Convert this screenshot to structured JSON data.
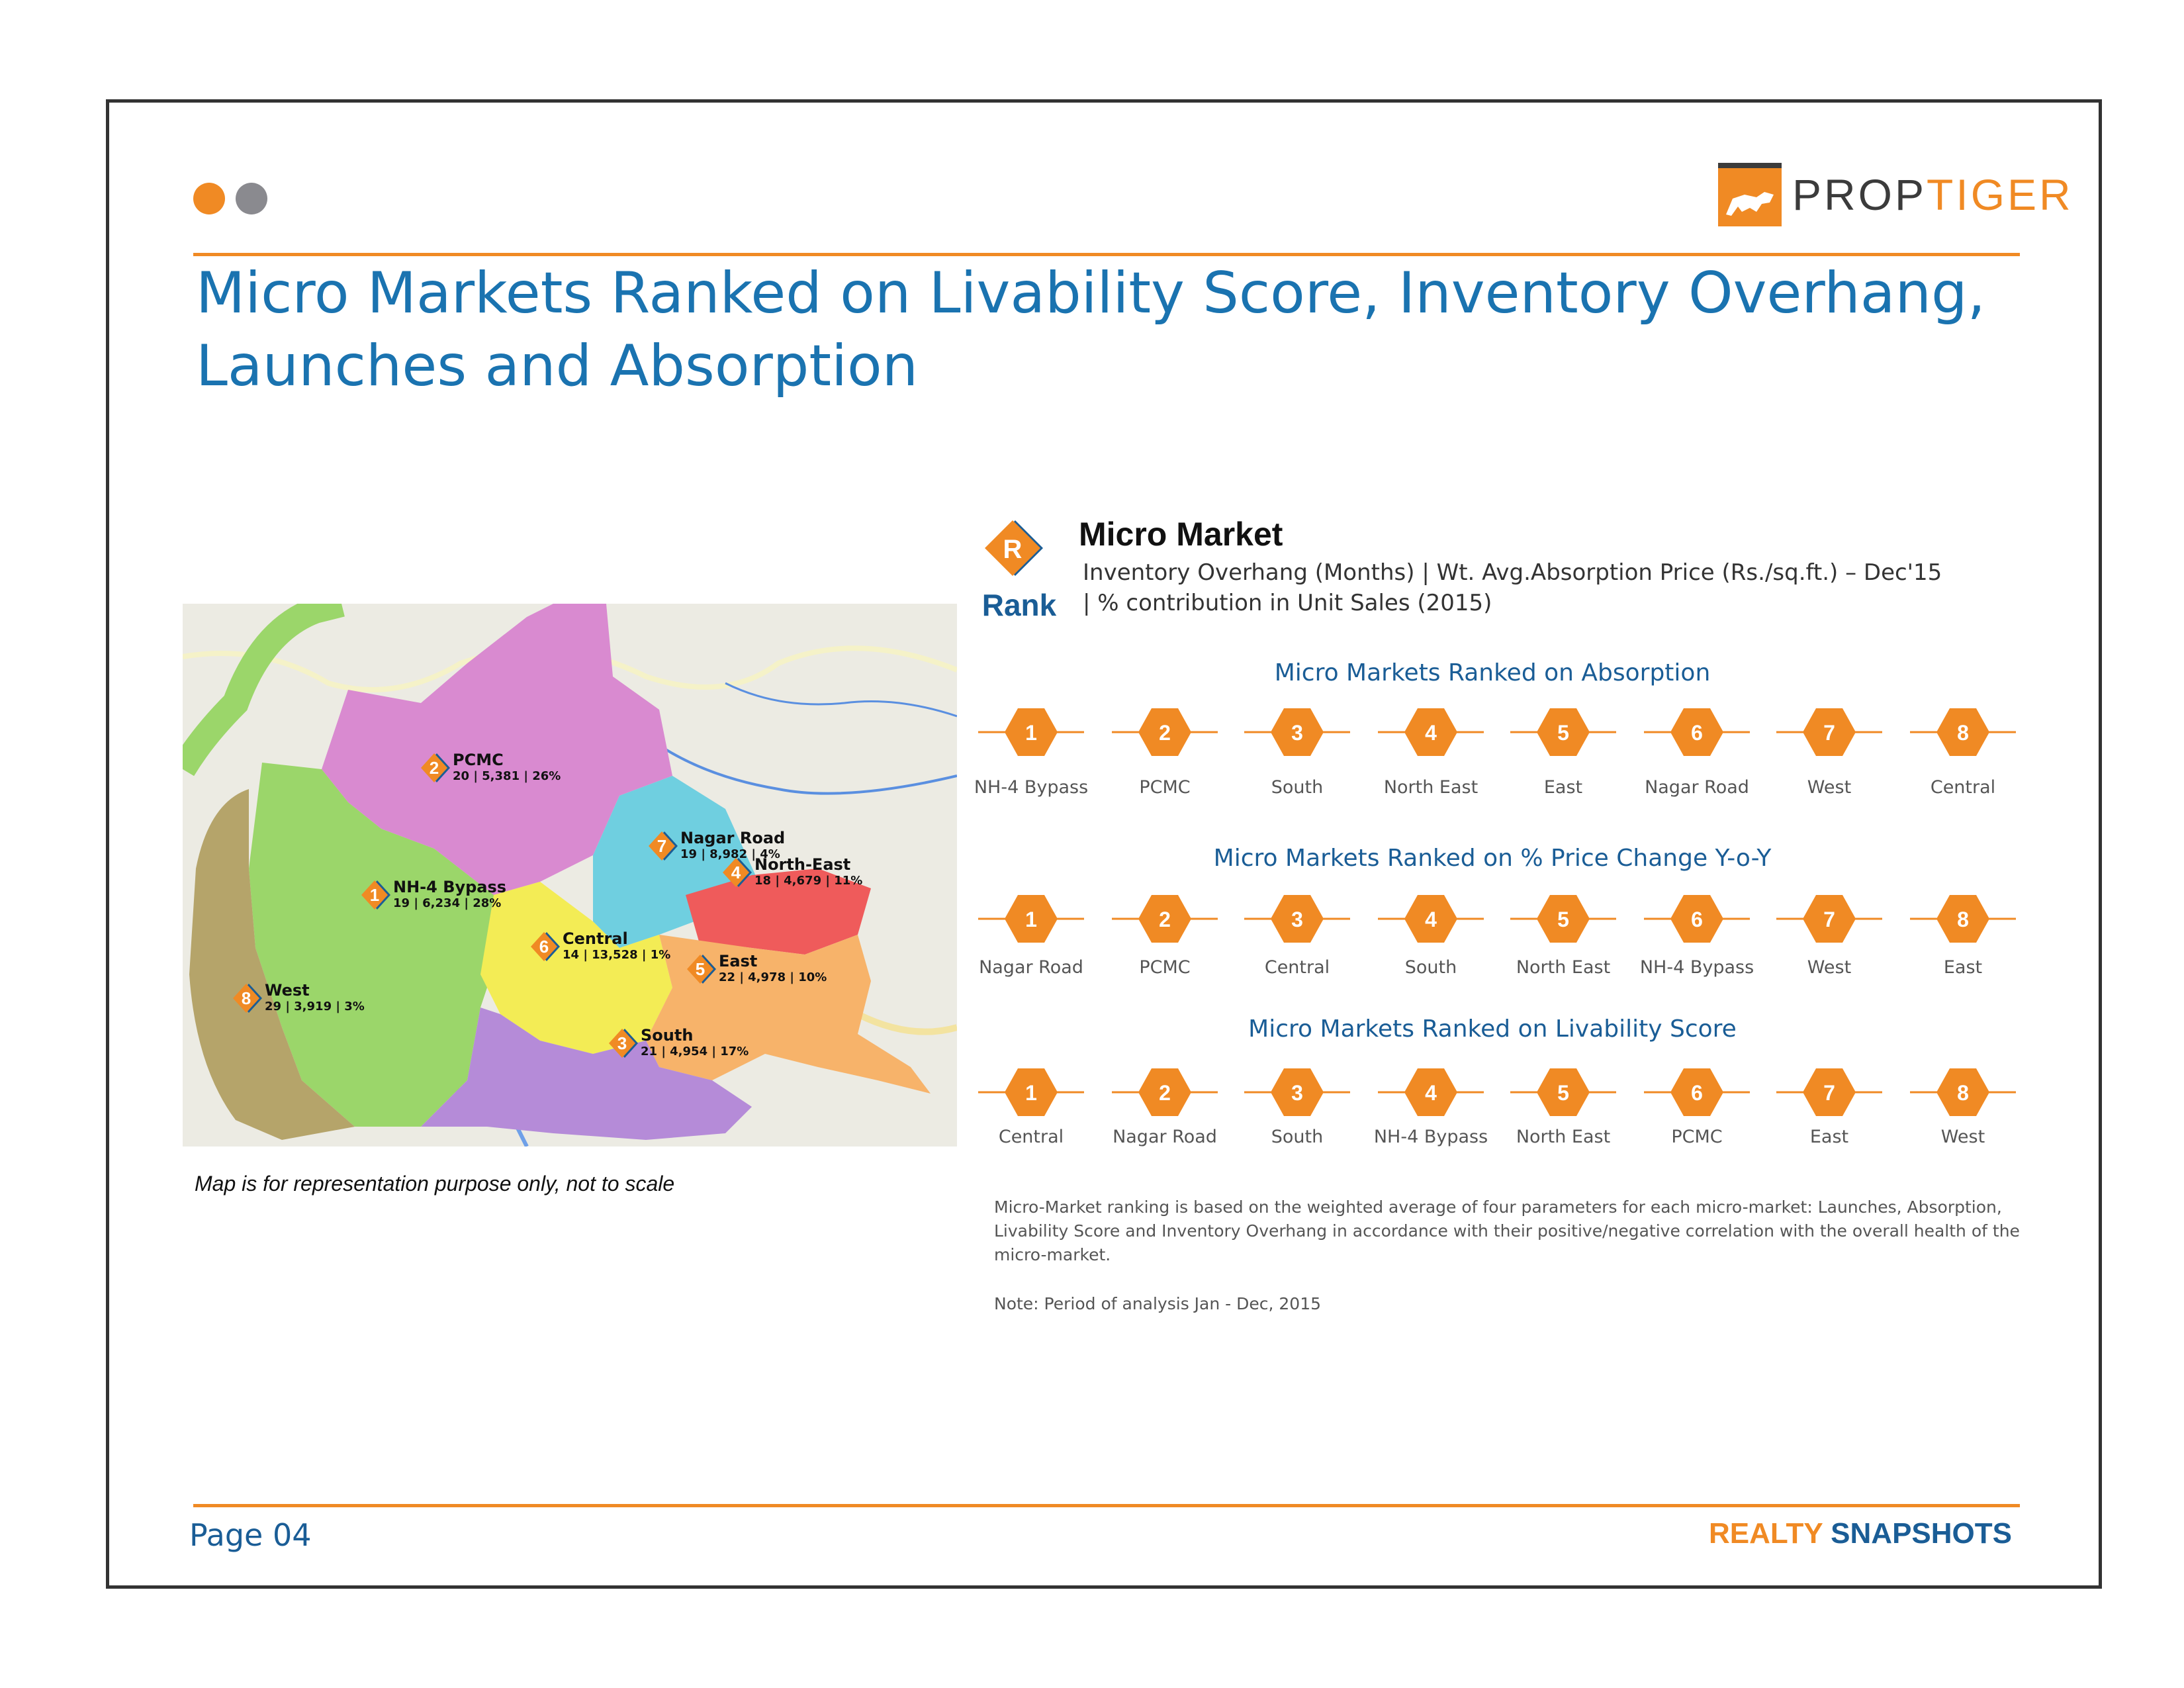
{
  "header": {
    "logo": {
      "prefix": "PROP",
      "suffix": "TIGER",
      "icon": "tiger-logo-icon"
    },
    "title_line1": "Micro Markets Ranked on Livability Score, Inventory Overhang,",
    "title_line2": "Launches and Absorption"
  },
  "map": {
    "caption": "Map is for representation purpose only, not to scale",
    "markets": [
      {
        "rank": "2",
        "name": "PCMC",
        "stats": "20 | 5,381 | 26%",
        "color": "#d98ad0"
      },
      {
        "rank": "7",
        "name": "Nagar Road",
        "stats": "19 | 8,982 | 4%",
        "color": "#6fcfe0"
      },
      {
        "rank": "4",
        "name": "North-East",
        "stats": "18 | 4,679 | 11%",
        "color": "#ef5b5b"
      },
      {
        "rank": "1",
        "name": "NH-4 Bypass",
        "stats": "19 | 6,234 | 28%",
        "color": "#9bd66a"
      },
      {
        "rank": "6",
        "name": "Central",
        "stats": "14 | 13,528 | 1%",
        "color": "#f3ec55"
      },
      {
        "rank": "5",
        "name": "East",
        "stats": "22 | 4,978 | 10%",
        "color": "#f7b36a"
      },
      {
        "rank": "8",
        "name": "West",
        "stats": "29 | 3,919 | 3%",
        "color": "#b5a46a"
      },
      {
        "rank": "3",
        "name": "South",
        "stats": "21 | 4,954 | 17%",
        "color": "#b58bd8"
      }
    ]
  },
  "legend": {
    "badge_letter": "R",
    "badge_word": "Rank",
    "title": "Micro Market",
    "subtitle": "Inventory Overhang (Months) | Wt. Avg.Absorption Price (Rs./sq.ft.) – Dec'15 | % contribution in Unit Sales (2015)"
  },
  "rankings": [
    {
      "title": "Micro Markets Ranked on Absorption",
      "ranks": [
        "1",
        "2",
        "3",
        "4",
        "5",
        "6",
        "7",
        "8"
      ],
      "labels": [
        "NH-4 Bypass",
        "PCMC",
        "South",
        "North East",
        "East",
        "Nagar Road",
        "West",
        "Central"
      ]
    },
    {
      "title": "Micro Markets Ranked on % Price Change Y-o-Y",
      "ranks": [
        "1",
        "2",
        "3",
        "4",
        "5",
        "6",
        "7",
        "8"
      ],
      "labels": [
        "Nagar Road",
        "PCMC",
        "Central",
        "South",
        "North East",
        "NH-4 Bypass",
        "West",
        "East"
      ]
    },
    {
      "title": "Micro Markets Ranked on Livability Score",
      "ranks": [
        "1",
        "2",
        "3",
        "4",
        "5",
        "6",
        "7",
        "8"
      ],
      "labels": [
        "Central",
        "Nagar Road",
        "South",
        "NH-4 Bypass",
        "North East",
        "PCMC",
        "East",
        "West"
      ]
    }
  ],
  "notes": {
    "methodology": "Micro-Market ranking is based on the weighted average of four parameters for each micro-market: Launches, Absorption, Livability Score and Inventory Overhang in accordance with their positive/negative correlation with the overall health of the micro-market.",
    "period": "Note: Period of analysis Jan - Dec, 2015"
  },
  "footer": {
    "page": "Page 04",
    "brand_a": "REALTY",
    "brand_b": "SNAPSHOTS"
  },
  "colors": {
    "accent": "#f08a24",
    "title_blue": "#1a73b0",
    "dark_blue": "#1a5d96"
  }
}
